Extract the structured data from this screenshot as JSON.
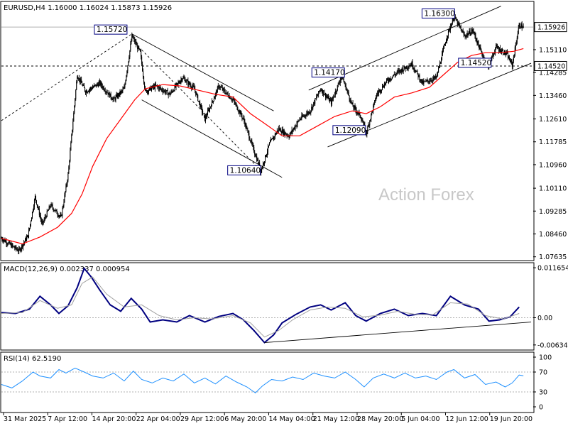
{
  "chart_data": [
    {
      "panel": "price",
      "type": "candlestick",
      "title": "EURUSD,H4  1.16000 1.16024 1.15873 1.15926",
      "watermark": "Action Forex",
      "ylim": [
        1.0755,
        1.168
      ],
      "yticks": [
        "1.15926",
        "1.15110",
        "1.14285",
        "1.13460",
        "1.12610",
        "1.11785",
        "1.10960",
        "1.10110",
        "1.09285",
        "1.08460",
        "1.07635"
      ],
      "ytick_values": [
        1.15926,
        1.1511,
        1.14285,
        1.1346,
        1.1261,
        1.11785,
        1.1096,
        1.1011,
        1.09285,
        1.0846,
        1.07635
      ],
      "current_price": {
        "label": "1.15926",
        "value": 1.15926
      },
      "horizontal_level": {
        "label": "1.14520",
        "value": 1.1452
      },
      "ma_color": "#ff0000",
      "candle_color": "#000000",
      "price_path": [
        [
          0,
          1.083
        ],
        [
          25,
          1.0785
        ],
        [
          38,
          1.084
        ],
        [
          48,
          1.098
        ],
        [
          58,
          1.088
        ],
        [
          70,
          1.095
        ],
        [
          85,
          1.0905
        ],
        [
          95,
          1.106
        ],
        [
          108,
          1.142
        ],
        [
          120,
          1.136
        ],
        [
          140,
          1.139
        ],
        [
          160,
          1.133
        ],
        [
          175,
          1.137
        ],
        [
          186,
          1.156
        ],
        [
          198,
          1.15
        ],
        [
          205,
          1.136
        ],
        [
          220,
          1.138
        ],
        [
          240,
          1.135
        ],
        [
          258,
          1.141
        ],
        [
          275,
          1.137
        ],
        [
          290,
          1.126
        ],
        [
          310,
          1.138
        ],
        [
          330,
          1.133
        ],
        [
          345,
          1.126
        ],
        [
          358,
          1.116
        ],
        [
          370,
          1.1075
        ],
        [
          382,
          1.117
        ],
        [
          395,
          1.1225
        ],
        [
          410,
          1.12
        ],
        [
          425,
          1.126
        ],
        [
          440,
          1.129
        ],
        [
          455,
          1.137
        ],
        [
          470,
          1.132
        ],
        [
          485,
          1.1417
        ],
        [
          500,
          1.131
        ],
        [
          512,
          1.127
        ],
        [
          520,
          1.1209
        ],
        [
          535,
          1.135
        ],
        [
          550,
          1.14
        ],
        [
          565,
          1.143
        ],
        [
          585,
          1.146
        ],
        [
          600,
          1.139
        ],
        [
          620,
          1.141
        ],
        [
          635,
          1.156
        ],
        [
          645,
          1.163
        ],
        [
          660,
          1.156
        ],
        [
          672,
          1.158
        ],
        [
          684,
          1.15
        ],
        [
          694,
          1.1452
        ],
        [
          705,
          1.152
        ],
        [
          720,
          1.1495
        ],
        [
          728,
          1.1455
        ],
        [
          738,
          1.16
        ],
        [
          744,
          1.1592
        ]
      ],
      "ma_path": [
        [
          0,
          1.083
        ],
        [
          30,
          1.081
        ],
        [
          55,
          1.0835
        ],
        [
          80,
          1.087
        ],
        [
          100,
          1.092
        ],
        [
          115,
          1.099
        ],
        [
          130,
          1.109
        ],
        [
          150,
          1.119
        ],
        [
          170,
          1.126
        ],
        [
          190,
          1.133
        ],
        [
          205,
          1.137
        ],
        [
          230,
          1.1385
        ],
        [
          255,
          1.138
        ],
        [
          280,
          1.1365
        ],
        [
          305,
          1.135
        ],
        [
          330,
          1.134
        ],
        [
          355,
          1.128
        ],
        [
          375,
          1.1245
        ],
        [
          400,
          1.12
        ],
        [
          425,
          1.12
        ],
        [
          450,
          1.1235
        ],
        [
          475,
          1.127
        ],
        [
          500,
          1.129
        ],
        [
          520,
          1.128
        ],
        [
          540,
          1.1305
        ],
        [
          560,
          1.134
        ],
        [
          585,
          1.1355
        ],
        [
          610,
          1.1375
        ],
        [
          630,
          1.142
        ],
        [
          650,
          1.1465
        ],
        [
          670,
          1.149
        ],
        [
          690,
          1.15
        ],
        [
          710,
          1.15
        ],
        [
          730,
          1.1505
        ],
        [
          744,
          1.1515
        ]
      ],
      "trendlines": [
        {
          "name": "dotted-rise",
          "style": "dashed",
          "from": [
            0,
            1.1255
          ],
          "to": [
            186,
            1.1568
          ]
        },
        {
          "name": "channel-down-upper",
          "style": "solid",
          "from": [
            186,
            1.1568
          ],
          "to": [
            388,
            1.129
          ]
        },
        {
          "name": "channel-down-lower",
          "style": "solid",
          "from": [
            200,
            1.133
          ],
          "to": [
            400,
            1.105
          ]
        },
        {
          "name": "dotted-fall",
          "style": "dashed",
          "from": [
            200,
            1.151
          ],
          "to": [
            370,
            1.1075
          ]
        },
        {
          "name": "channel-up-upper",
          "style": "solid",
          "from": [
            438,
            1.1365
          ],
          "to": [
            712,
            1.1668
          ]
        },
        {
          "name": "channel-up-lower",
          "style": "solid",
          "from": [
            465,
            1.116
          ],
          "to": [
            755,
            1.1462
          ]
        }
      ],
      "annotations": [
        {
          "label": "1.15720",
          "value": 1.1572,
          "bar": 175
        },
        {
          "label": "1.10640",
          "value": 1.1064,
          "bar": 365
        },
        {
          "label": "1.14170",
          "value": 1.1417,
          "bar": 485
        },
        {
          "label": "1.12090",
          "value": 1.1209,
          "bar": 515
        },
        {
          "label": "1.16300",
          "value": 1.163,
          "bar": 642
        },
        {
          "label": "1.14520",
          "value": 1.1452,
          "bar": 694
        }
      ]
    },
    {
      "panel": "macd",
      "type": "line",
      "title": "MACD(12,26,9) 0.002337 0.000954",
      "ylim": [
        -0.0072,
        0.0125
      ],
      "yticks": [
        "0.011654",
        "0.00",
        "-0.006345"
      ],
      "ytick_values": [
        0.011654,
        0.0,
        -0.006345
      ],
      "series": [
        {
          "name": "MACD",
          "color": "#000080",
          "values": [
            [
              0,
              0.0012
            ],
            [
              20,
              0.001
            ],
            [
              40,
              0.002
            ],
            [
              55,
              0.005
            ],
            [
              70,
              0.003
            ],
            [
              82,
              0.001
            ],
            [
              95,
              0.0028
            ],
            [
              108,
              0.007
            ],
            [
              118,
              0.0115
            ],
            [
              128,
              0.0095
            ],
            [
              140,
              0.0065
            ],
            [
              155,
              0.003
            ],
            [
              170,
              0.0015
            ],
            [
              185,
              0.0045
            ],
            [
              200,
              0.002
            ],
            [
              212,
              -0.001
            ],
            [
              230,
              -0.0005
            ],
            [
              250,
              -0.001
            ],
            [
              268,
              0.0005
            ],
            [
              290,
              -0.001
            ],
            [
              310,
              0.0003
            ],
            [
              330,
              0.001
            ],
            [
              345,
              -0.0005
            ],
            [
              360,
              -0.003
            ],
            [
              375,
              -0.0058
            ],
            [
              388,
              -0.004
            ],
            [
              400,
              -0.0012
            ],
            [
              420,
              0.0008
            ],
            [
              440,
              0.0025
            ],
            [
              455,
              0.003
            ],
            [
              470,
              0.0018
            ],
            [
              490,
              0.0035
            ],
            [
              505,
              0.0005
            ],
            [
              520,
              -0.0008
            ],
            [
              540,
              0.001
            ],
            [
              560,
              0.002
            ],
            [
              580,
              0.0005
            ],
            [
              600,
              0.001
            ],
            [
              620,
              0.0005
            ],
            [
              640,
              0.005
            ],
            [
              660,
              0.003
            ],
            [
              680,
              0.002
            ],
            [
              695,
              -0.0008
            ],
            [
              710,
              -0.0005
            ],
            [
              725,
              0.0002
            ],
            [
              738,
              0.0025
            ]
          ]
        },
        {
          "name": "Signal",
          "color": "#a0a0a0",
          "values": [
            [
              0,
              0.001
            ],
            [
              30,
              0.0012
            ],
            [
              55,
              0.004
            ],
            [
              80,
              0.0022
            ],
            [
              100,
              0.003
            ],
            [
              115,
              0.008
            ],
            [
              130,
              0.0095
            ],
            [
              150,
              0.0055
            ],
            [
              175,
              0.0025
            ],
            [
              200,
              0.003
            ],
            [
              225,
              0.0005
            ],
            [
              250,
              -0.0005
            ],
            [
              275,
              0.0
            ],
            [
              300,
              -0.0003
            ],
            [
              330,
              0.0005
            ],
            [
              355,
              -0.0012
            ],
            [
              375,
              -0.0045
            ],
            [
              395,
              -0.003
            ],
            [
              415,
              -0.0005
            ],
            [
              440,
              0.0018
            ],
            [
              465,
              0.0025
            ],
            [
              490,
              0.0022
            ],
            [
              515,
              0.0002
            ],
            [
              540,
              0.0006
            ],
            [
              565,
              0.0015
            ],
            [
              590,
              0.0008
            ],
            [
              615,
              0.0007
            ],
            [
              640,
              0.0035
            ],
            [
              665,
              0.0032
            ],
            [
              690,
              0.0005
            ],
            [
              715,
              -0.0003
            ],
            [
              738,
              0.001
            ]
          ]
        }
      ],
      "trendline": {
        "from": [
          375,
          -0.0058
        ],
        "to": [
          755,
          -0.001
        ]
      }
    },
    {
      "panel": "rsi",
      "type": "line",
      "title": "RSI(14) 62.5190",
      "ylim": [
        0,
        100
      ],
      "yticks": [
        "100",
        "70",
        "30",
        "0"
      ],
      "ytick_values": [
        100,
        70,
        30,
        0
      ],
      "levels": [
        70,
        30
      ],
      "series": [
        {
          "name": "RSI",
          "color": "#1e90ff",
          "values": [
            [
              0,
              45
            ],
            [
              15,
              38
            ],
            [
              30,
              52
            ],
            [
              45,
              70
            ],
            [
              55,
              62
            ],
            [
              70,
              58
            ],
            [
              82,
              75
            ],
            [
              92,
              68
            ],
            [
              105,
              78
            ],
            [
              118,
              70
            ],
            [
              130,
              62
            ],
            [
              145,
              58
            ],
            [
              160,
              68
            ],
            [
              175,
              52
            ],
            [
              188,
              72
            ],
            [
              200,
              55
            ],
            [
              215,
              48
            ],
            [
              230,
              58
            ],
            [
              245,
              52
            ],
            [
              260,
              66
            ],
            [
              275,
              48
            ],
            [
              290,
              58
            ],
            [
              305,
              46
            ],
            [
              320,
              62
            ],
            [
              335,
              50
            ],
            [
              350,
              40
            ],
            [
              362,
              28
            ],
            [
              372,
              42
            ],
            [
              385,
              55
            ],
            [
              400,
              52
            ],
            [
              415,
              60
            ],
            [
              430,
              55
            ],
            [
              445,
              68
            ],
            [
              460,
              62
            ],
            [
              475,
              58
            ],
            [
              490,
              70
            ],
            [
              505,
              55
            ],
            [
              517,
              40
            ],
            [
              530,
              58
            ],
            [
              545,
              66
            ],
            [
              560,
              58
            ],
            [
              575,
              68
            ],
            [
              590,
              58
            ],
            [
              605,
              62
            ],
            [
              620,
              55
            ],
            [
              635,
              70
            ],
            [
              645,
              75
            ],
            [
              660,
              58
            ],
            [
              675,
              65
            ],
            [
              690,
              45
            ],
            [
              705,
              50
            ],
            [
              718,
              40
            ],
            [
              728,
              48
            ],
            [
              738,
              64
            ],
            [
              744,
              62.519
            ]
          ]
        }
      ]
    }
  ],
  "x_axis": {
    "labels": [
      "31 Mar 2025",
      "7 Apr 12:00",
      "14 Apr 20:00",
      "22 Apr 04:00",
      "29 Apr 12:00",
      "6 May 20:00",
      "14 May 04:00",
      "21 May 12:00",
      "28 May 20:00",
      "5 Jun 04:00",
      "12 Jun 12:00",
      "19 Jun 20:00"
    ],
    "positions": [
      3,
      66,
      129,
      192,
      255,
      318,
      381,
      444,
      507,
      570,
      633,
      696
    ]
  }
}
